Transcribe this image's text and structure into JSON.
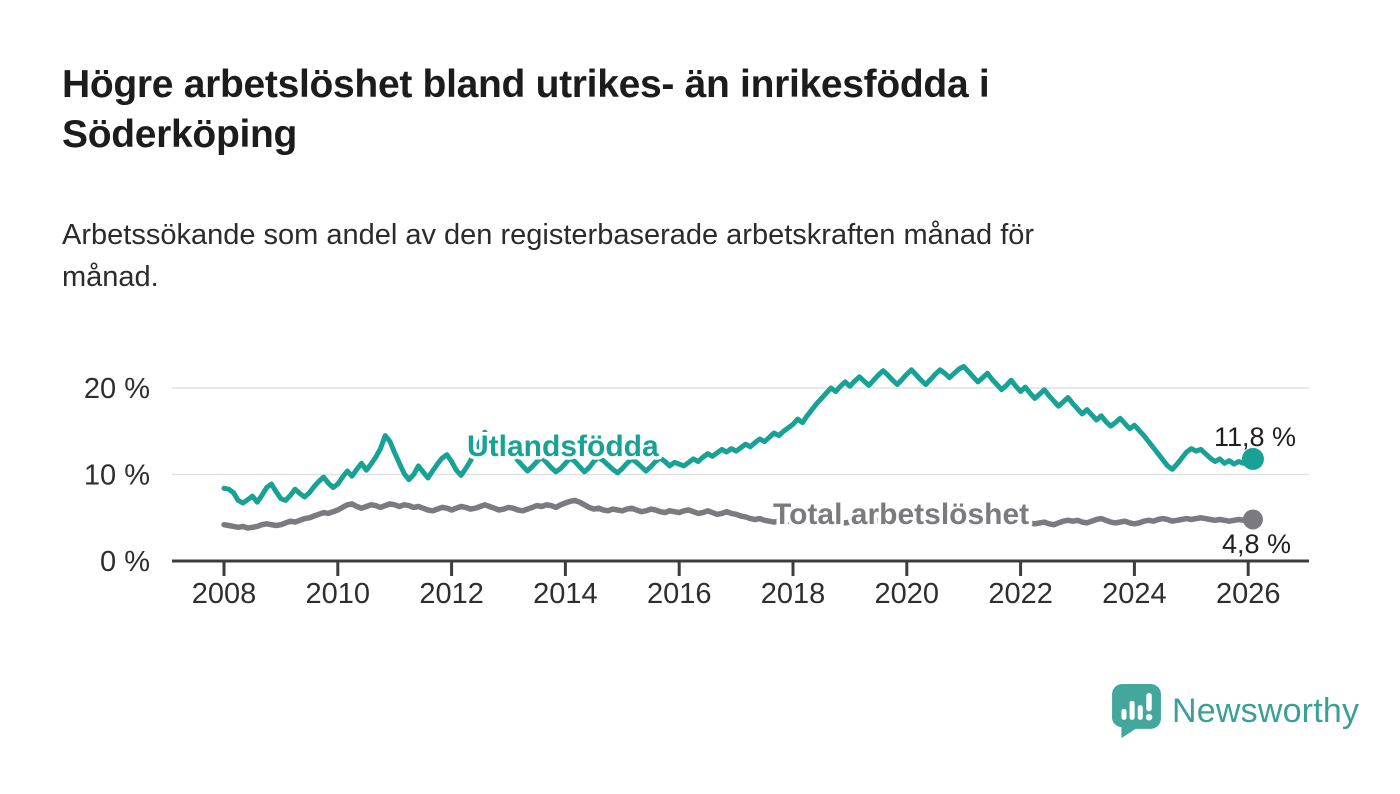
{
  "accent_color": "#18a296",
  "title": {
    "line1": "Högre arbetslöshet bland utrikes- än inrikesfödda i",
    "line2": "Söderköping"
  },
  "subtitle": {
    "line1": "Arbetssökande som andel av den registerbaserade arbetskraften månad för",
    "line2": "månad."
  },
  "logo": {
    "text": "Newsworthy",
    "icon": "newsworthy-speech-bubble-bar-chart-icon",
    "text_color": "#3a9f95",
    "icon_color": "#43a79b"
  },
  "chart_data": {
    "type": "line",
    "title": "Högre arbetslöshet bland utrikes- än inrikesfödda i Söderköping",
    "subtitle": "Arbetssökande som andel av den registerbaserade arbetskraften månad för månad.",
    "frequency": "monthly",
    "x_start_year": 2008,
    "x_start_month": 1,
    "x_ticks": [
      2008,
      2010,
      2012,
      2014,
      2016,
      2018,
      2020,
      2022,
      2024,
      2026
    ],
    "y_ticks": [
      {
        "value": 0,
        "label": "0 %"
      },
      {
        "value": 10,
        "label": "10 %"
      },
      {
        "value": 20,
        "label": "20 %"
      }
    ],
    "ylim": [
      0,
      24
    ],
    "grid": "horizontal",
    "axis_color": "#3d3d3d",
    "grid_color": "#e2e2e2",
    "tick_label_color": "#2e2e2e",
    "value_label_color": "#1f1f1f",
    "series": [
      {
        "id": "utlandsfodda",
        "name": "Utlandsfödda",
        "color": "#18a296",
        "end_label": "11,8 %",
        "end_value": 11.8,
        "values": [
          8.4,
          8.3,
          7.9,
          7.0,
          6.7,
          7.1,
          7.5,
          6.8,
          7.6,
          8.5,
          8.9,
          8.0,
          7.2,
          7.0,
          7.6,
          8.3,
          7.8,
          7.4,
          7.9,
          8.6,
          9.2,
          9.7,
          9.0,
          8.5,
          8.9,
          9.7,
          10.4,
          9.8,
          10.6,
          11.3,
          10.5,
          11.2,
          12.0,
          13.0,
          14.5,
          13.8,
          12.5,
          11.3,
          10.1,
          9.4,
          10.0,
          11.0,
          10.3,
          9.6,
          10.4,
          11.2,
          11.9,
          12.3,
          11.5,
          10.5,
          9.9,
          10.7,
          11.6,
          12.8,
          13.8,
          14.9,
          13.9,
          12.7,
          12.1,
          12.4,
          12.9,
          12.3,
          11.6,
          11.0,
          10.4,
          10.9,
          11.5,
          12.0,
          11.4,
          10.8,
          10.3,
          10.7,
          11.3,
          11.9,
          11.5,
          10.9,
          10.3,
          10.8,
          11.5,
          12.0,
          11.6,
          11.1,
          10.6,
          10.2,
          10.7,
          11.3,
          11.8,
          11.4,
          10.9,
          10.4,
          10.9,
          11.5,
          11.9,
          11.5,
          11.0,
          11.4,
          11.2,
          11.0,
          11.4,
          11.8,
          11.5,
          12.0,
          12.4,
          12.1,
          12.5,
          12.9,
          12.6,
          13.0,
          12.7,
          13.1,
          13.5,
          13.2,
          13.7,
          14.1,
          13.8,
          14.3,
          14.8,
          14.5,
          15.0,
          15.4,
          15.8,
          16.4,
          16.0,
          16.8,
          17.5,
          18.2,
          18.8,
          19.4,
          20.0,
          19.6,
          20.2,
          20.7,
          20.2,
          20.8,
          21.3,
          20.8,
          20.3,
          20.9,
          21.5,
          22.0,
          21.5,
          20.9,
          20.4,
          21.0,
          21.6,
          22.1,
          21.5,
          20.9,
          20.4,
          21.0,
          21.6,
          22.1,
          21.7,
          21.2,
          21.7,
          22.2,
          22.5,
          21.9,
          21.3,
          20.7,
          21.2,
          21.7,
          21.0,
          20.4,
          19.8,
          20.3,
          20.9,
          20.2,
          19.6,
          20.1,
          19.4,
          18.8,
          19.3,
          19.8,
          19.1,
          18.5,
          17.9,
          18.4,
          18.9,
          18.2,
          17.6,
          17.0,
          17.5,
          16.9,
          16.3,
          16.8,
          16.1,
          15.6,
          16.0,
          16.5,
          15.9,
          15.3,
          15.7,
          15.1,
          14.5,
          13.8,
          13.1,
          12.4,
          11.7,
          11.0,
          10.6,
          11.2,
          11.9,
          12.6,
          13.0,
          12.7,
          12.9,
          12.4,
          11.9,
          11.5,
          11.8,
          11.3,
          11.6,
          11.2,
          11.5,
          11.3,
          11.5,
          11.8
        ]
      },
      {
        "id": "total",
        "name": "Total arbetslöshet",
        "color": "#7b7a80",
        "end_label": "4,8 %",
        "end_value": 4.8,
        "values": [
          4.2,
          4.1,
          4.0,
          3.9,
          4.0,
          3.8,
          3.9,
          4.0,
          4.2,
          4.3,
          4.2,
          4.1,
          4.2,
          4.4,
          4.6,
          4.5,
          4.7,
          4.9,
          5.0,
          5.2,
          5.4,
          5.6,
          5.5,
          5.7,
          5.9,
          6.2,
          6.5,
          6.6,
          6.3,
          6.1,
          6.3,
          6.5,
          6.4,
          6.2,
          6.4,
          6.6,
          6.5,
          6.3,
          6.5,
          6.4,
          6.2,
          6.3,
          6.1,
          5.9,
          5.8,
          6.0,
          6.2,
          6.1,
          5.9,
          6.1,
          6.3,
          6.2,
          6.0,
          6.1,
          6.3,
          6.5,
          6.3,
          6.1,
          5.9,
          6.0,
          6.2,
          6.1,
          5.9,
          5.8,
          6.0,
          6.2,
          6.4,
          6.3,
          6.5,
          6.4,
          6.2,
          6.5,
          6.7,
          6.9,
          7.0,
          6.8,
          6.5,
          6.2,
          6.0,
          6.1,
          5.9,
          5.8,
          6.0,
          5.9,
          5.8,
          6.0,
          6.1,
          5.9,
          5.7,
          5.8,
          6.0,
          5.9,
          5.7,
          5.6,
          5.8,
          5.7,
          5.6,
          5.8,
          5.9,
          5.7,
          5.5,
          5.6,
          5.8,
          5.6,
          5.4,
          5.5,
          5.7,
          5.5,
          5.4,
          5.2,
          5.1,
          4.9,
          4.8,
          4.9,
          4.7,
          4.6,
          4.5,
          4.6,
          4.7,
          4.6,
          4.5,
          4.4,
          4.5,
          4.6,
          4.5,
          4.4,
          4.3,
          4.4,
          4.5,
          4.6,
          4.5,
          4.4,
          4.5,
          4.6,
          4.7,
          4.6,
          4.5,
          4.6,
          4.7,
          4.8,
          4.7,
          4.6,
          4.7,
          4.8,
          4.9,
          5.0,
          5.1,
          5.2,
          5.1,
          5.0,
          5.1,
          5.0,
          4.9,
          4.8,
          4.9,
          5.0,
          4.9,
          4.8,
          4.7,
          4.8,
          4.7,
          4.6,
          4.7,
          4.6,
          4.5,
          4.6,
          4.7,
          4.8,
          4.7,
          4.5,
          4.4,
          4.3,
          4.4,
          4.5,
          4.3,
          4.2,
          4.4,
          4.6,
          4.7,
          4.6,
          4.7,
          4.5,
          4.4,
          4.6,
          4.8,
          4.9,
          4.7,
          4.5,
          4.4,
          4.5,
          4.6,
          4.4,
          4.3,
          4.4,
          4.6,
          4.7,
          4.6,
          4.8,
          4.9,
          4.8,
          4.6,
          4.7,
          4.8,
          4.9,
          4.8,
          4.9,
          5.0,
          4.9,
          4.8,
          4.7,
          4.8,
          4.7,
          4.6,
          4.7,
          4.8,
          4.7,
          4.7,
          4.8
        ]
      }
    ]
  }
}
